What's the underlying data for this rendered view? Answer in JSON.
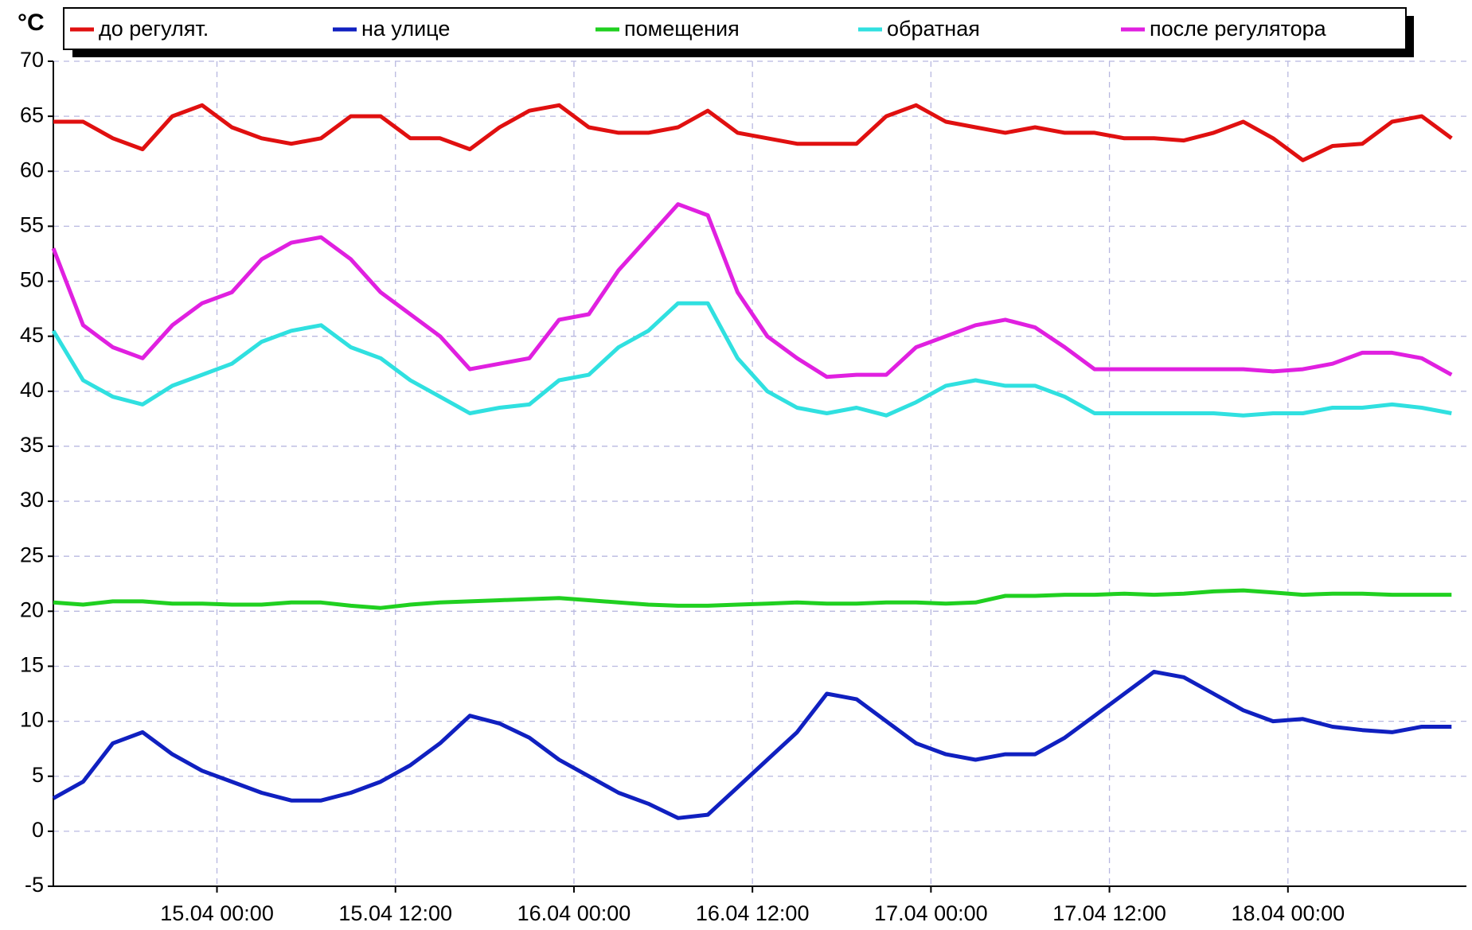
{
  "chart_data": {
    "type": "line",
    "ylabel": "°C",
    "x": [
      "14.04 13:00",
      "14.04 15:00",
      "14.04 17:00",
      "14.04 19:00",
      "14.04 21:00",
      "14.04 23:00",
      "15.04 01:00",
      "15.04 03:00",
      "15.04 05:00",
      "15.04 07:00",
      "15.04 09:00",
      "15.04 11:00",
      "15.04 13:00",
      "15.04 15:00",
      "15.04 17:00",
      "15.04 19:00",
      "15.04 21:00",
      "15.04 23:00",
      "16.04 01:00",
      "16.04 03:00",
      "16.04 05:00",
      "16.04 07:00",
      "16.04 09:00",
      "16.04 11:00",
      "16.04 13:00",
      "16.04 15:00",
      "16.04 17:00",
      "16.04 19:00",
      "16.04 21:00",
      "16.04 23:00",
      "17.04 01:00",
      "17.04 03:00",
      "17.04 05:00",
      "17.04 07:00",
      "17.04 09:00",
      "17.04 11:00",
      "17.04 13:00",
      "17.04 15:00",
      "17.04 17:00",
      "17.04 19:00",
      "17.04 21:00",
      "17.04 23:00",
      "18.04 01:00",
      "18.04 03:00",
      "18.04 05:00",
      "18.04 07:00",
      "18.04 09:00",
      "18.04 11:00"
    ],
    "series": [
      {
        "name": "до регулят.",
        "color": "#e01010",
        "values": [
          64.5,
          64.5,
          63,
          62,
          65,
          66,
          64,
          63,
          62.5,
          63,
          65,
          65,
          63,
          63,
          62,
          64,
          65.5,
          66,
          64,
          63.5,
          63.5,
          64,
          65.5,
          63.5,
          63,
          62.5,
          62.5,
          62.5,
          65,
          66,
          64.5,
          64,
          63.5,
          64,
          63.5,
          63.5,
          63,
          63,
          62.8,
          63.5,
          64.5,
          63,
          61,
          62.3,
          62.5,
          64.5,
          65,
          63
        ]
      },
      {
        "name": "на улице",
        "color": "#1020c0",
        "values": [
          3,
          4.5,
          8,
          9,
          7,
          5.5,
          4.5,
          3.5,
          2.8,
          2.8,
          3.5,
          4.5,
          6,
          8,
          10.5,
          9.8,
          8.5,
          6.5,
          5,
          3.5,
          2.5,
          1.2,
          1.5,
          4,
          6.5,
          9,
          12.5,
          12,
          10,
          8,
          7,
          6.5,
          7,
          7,
          8.5,
          10.5,
          12.5,
          14.5,
          14,
          12.5,
          11,
          10,
          10.2,
          9.5,
          9.2,
          9,
          9.5,
          9.5
        ]
      },
      {
        "name": "помещения",
        "color": "#20d020",
        "values": [
          20.8,
          20.6,
          20.9,
          20.9,
          20.7,
          20.7,
          20.6,
          20.6,
          20.8,
          20.8,
          20.5,
          20.3,
          20.6,
          20.8,
          20.9,
          21,
          21.1,
          21.2,
          21,
          20.8,
          20.6,
          20.5,
          20.5,
          20.6,
          20.7,
          20.8,
          20.7,
          20.7,
          20.8,
          20.8,
          20.7,
          20.8,
          21.4,
          21.4,
          21.5,
          21.5,
          21.6,
          21.5,
          21.6,
          21.8,
          21.9,
          21.7,
          21.5,
          21.6,
          21.6,
          21.5,
          21.5,
          21.5
        ]
      },
      {
        "name": "обратная",
        "color": "#30e0e0",
        "values": [
          45.5,
          41,
          39.5,
          38.8,
          40.5,
          41.5,
          42.5,
          44.5,
          45.5,
          46,
          44,
          43,
          41,
          39.5,
          38,
          38.5,
          38.8,
          41,
          41.5,
          44,
          45.5,
          48,
          48,
          43,
          40,
          38.5,
          38,
          38.5,
          37.8,
          39,
          40.5,
          41,
          40.5,
          40.5,
          39.5,
          38,
          38,
          38,
          38,
          38,
          37.8,
          38,
          38,
          38.5,
          38.5,
          38.8,
          38.5,
          38
        ]
      },
      {
        "name": "после регулятора",
        "color": "#e020e0",
        "values": [
          53,
          46,
          44,
          43,
          46,
          48,
          49,
          52,
          53.5,
          54,
          52,
          49,
          47,
          45,
          42,
          42.5,
          43,
          46.5,
          47,
          51,
          54,
          57,
          56,
          49,
          45,
          43,
          41.3,
          41.5,
          41.5,
          44,
          45,
          46,
          46.5,
          45.8,
          44,
          42,
          42,
          42,
          42,
          42,
          42,
          41.8,
          42,
          42.5,
          43.5,
          43.5,
          43,
          41.5
        ]
      }
    ],
    "xlim": [
      "14.04 13:00",
      "18.04 12:00"
    ],
    "xticks": [
      "15.04 00:00",
      "15.04 12:00",
      "16.04 00:00",
      "16.04 12:00",
      "17.04 00:00",
      "17.04 12:00",
      "18.04 00:00"
    ],
    "ylim": [
      -5,
      70
    ],
    "yticks": [
      -5,
      0,
      5,
      10,
      15,
      20,
      25,
      30,
      35,
      40,
      45,
      50,
      55,
      60,
      65,
      70
    ],
    "grid": true
  }
}
